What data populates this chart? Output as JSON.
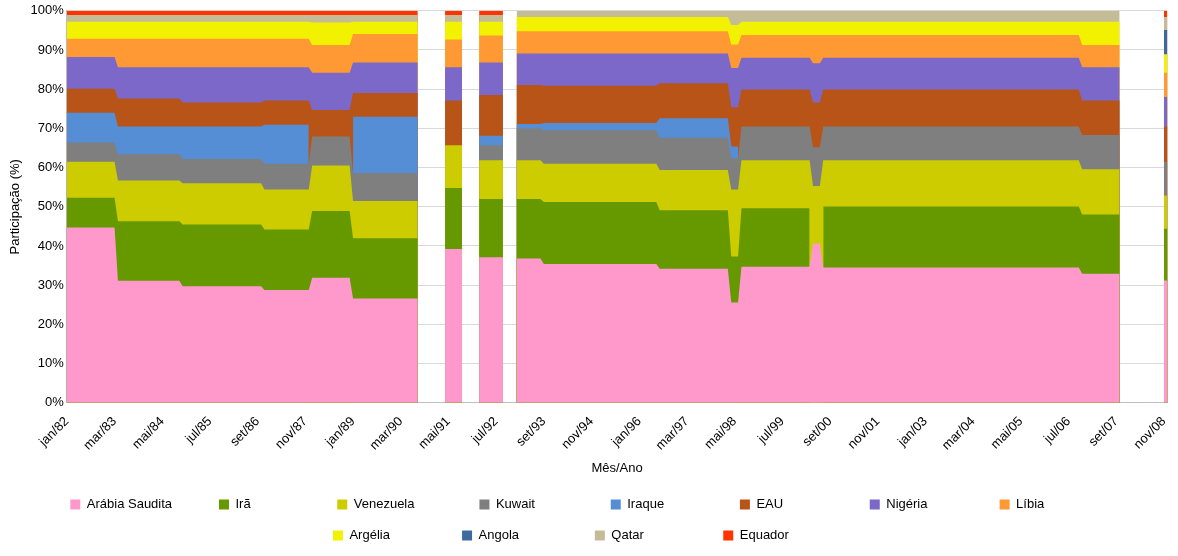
{
  "chart_data": {
    "type": "area",
    "stacked": true,
    "xlabel": "Mês/Ano",
    "ylabel": "Participação (%)",
    "x": [
      "1982-01",
      "1983-03",
      "1983-04",
      "1984-10",
      "1984-11",
      "1986-10",
      "1986-11",
      "1987-12",
      "1988-01",
      "1988-12",
      "1989-01",
      "1990-08",
      "1990-12",
      "1991-04",
      "1991-09",
      "1991-12",
      "1992-02",
      "1992-09",
      "1992-11",
      "1993-01",
      "1993-08",
      "1993-09",
      "1996-06",
      "1996-07",
      "1998-03",
      "1998-04",
      "1998-06",
      "1998-07",
      "2000-03",
      "2000-04",
      "2000-06",
      "2000-07",
      "2006-10",
      "2006-11",
      "2007-10",
      "2008-05",
      "2008-11",
      "2008-12"
    ],
    "xlim": [
      "1982-01",
      "2008-12"
    ],
    "xticks": [
      {
        "value": "1982-01",
        "label": "jan/82"
      },
      {
        "value": "1983-03",
        "label": "mar/83"
      },
      {
        "value": "1984-05",
        "label": "mai/84"
      },
      {
        "value": "1985-07",
        "label": "jul/85"
      },
      {
        "value": "1986-09",
        "label": "set/86"
      },
      {
        "value": "1987-11",
        "label": "nov/87"
      },
      {
        "value": "1989-01",
        "label": "jan/89"
      },
      {
        "value": "1990-03",
        "label": "mar/90"
      },
      {
        "value": "1991-05",
        "label": "mai/91"
      },
      {
        "value": "1992-07",
        "label": "jul/92"
      },
      {
        "value": "1993-09",
        "label": "set/93"
      },
      {
        "value": "1994-11",
        "label": "nov/94"
      },
      {
        "value": "1996-01",
        "label": "jan/96"
      },
      {
        "value": "1997-03",
        "label": "mar/97"
      },
      {
        "value": "1998-05",
        "label": "mai/98"
      },
      {
        "value": "1999-07",
        "label": "jul/99"
      },
      {
        "value": "2000-09",
        "label": "set/00"
      },
      {
        "value": "2001-11",
        "label": "nov/01"
      },
      {
        "value": "2003-01",
        "label": "jan/03"
      },
      {
        "value": "2004-03",
        "label": "mar/04"
      },
      {
        "value": "2005-05",
        "label": "mai/05"
      },
      {
        "value": "2006-07",
        "label": "jul/06"
      },
      {
        "value": "2007-09",
        "label": "set/07"
      },
      {
        "value": "2008-11",
        "label": "nov/08"
      }
    ],
    "ylim": [
      0,
      100
    ],
    "yticks": [
      {
        "value": 0,
        "label": "0%"
      },
      {
        "value": 10,
        "label": "10%"
      },
      {
        "value": 20,
        "label": "20%"
      },
      {
        "value": 30,
        "label": "30%"
      },
      {
        "value": 40,
        "label": "40%"
      },
      {
        "value": 50,
        "label": "50%"
      },
      {
        "value": 60,
        "label": "60%"
      },
      {
        "value": 70,
        "label": "70%"
      },
      {
        "value": 80,
        "label": "80%"
      },
      {
        "value": 90,
        "label": "90%"
      },
      {
        "value": 100,
        "label": "100%"
      }
    ],
    "grid": "y",
    "legend": "bottom",
    "series": [
      {
        "name": "Arábia Saudita",
        "color": "#ff99cc",
        "values": [
          44.7,
          44.7,
          31.1,
          31.1,
          29.7,
          29.7,
          28.8,
          28.8,
          31.9,
          31.9,
          26.6,
          26.6,
          null,
          39.2,
          39.2,
          null,
          37.1,
          37.1,
          null,
          36.8,
          36.8,
          35.4,
          35.4,
          34.2,
          34.2,
          25.6,
          25.6,
          34.7,
          34.7,
          40.6,
          40.6,
          34.5,
          34.5,
          32.9,
          32.9,
          null,
          31.2,
          31.2
        ]
      },
      {
        "name": "Irã",
        "color": "#669900",
        "values": [
          7.6,
          7.6,
          15.2,
          15.2,
          15.8,
          15.8,
          15.4,
          15.4,
          17.0,
          17.0,
          15.4,
          15.4,
          null,
          15.6,
          15.6,
          null,
          14.9,
          14.9,
          null,
          15.2,
          15.2,
          15.8,
          15.8,
          14.9,
          14.9,
          11.7,
          11.7,
          14.9,
          14.9,
          null,
          null,
          15.6,
          15.6,
          15.1,
          15.1,
          null,
          13.2,
          13.2
        ]
      },
      {
        "name": "Venezuela",
        "color": "#cccc00",
        "values": [
          9.2,
          9.2,
          10.4,
          10.4,
          10.5,
          10.5,
          10.2,
          10.2,
          11.6,
          11.6,
          9.5,
          9.5,
          null,
          10.9,
          10.9,
          null,
          9.9,
          9.9,
          null,
          9.9,
          9.9,
          9.8,
          9.8,
          10.3,
          10.3,
          17.1,
          17.1,
          12.3,
          12.3,
          14.7,
          14.7,
          11.8,
          11.8,
          11.6,
          11.6,
          null,
          8.5,
          8.5
        ]
      },
      {
        "name": "Kuwait",
        "color": "#7f7f7f",
        "values": [
          4.9,
          4.9,
          6.7,
          6.7,
          6.2,
          6.2,
          6.6,
          6.6,
          7.4,
          7.4,
          7.1,
          7.1,
          null,
          null,
          null,
          null,
          3.8,
          3.8,
          null,
          8.1,
          8.1,
          8.5,
          8.5,
          8.2,
          8.2,
          8.0,
          8.0,
          8.6,
          8.6,
          9.9,
          9.9,
          8.6,
          8.6,
          8.7,
          8.7,
          null,
          8.5,
          8.5
        ]
      },
      {
        "name": "Iraque",
        "color": "#558ed5",
        "values": [
          7.6,
          7.6,
          7.1,
          7.1,
          8.3,
          8.3,
          9.9,
          9.9,
          null,
          null,
          14.4,
          14.4,
          null,
          null,
          null,
          null,
          2.4,
          2.4,
          null,
          1.1,
          1.1,
          1.9,
          1.9,
          5.0,
          5.0,
          3.0,
          3.0,
          null,
          null,
          null,
          null,
          null,
          null,
          null,
          null,
          null,
          null,
          null
        ]
      },
      {
        "name": "EAU",
        "color": "#b85418",
        "values": [
          6.1,
          6.1,
          7.1,
          7.1,
          6.1,
          6.1,
          6.2,
          6.2,
          6.8,
          6.8,
          6.0,
          6.0,
          null,
          11.4,
          11.4,
          null,
          10.4,
          10.4,
          null,
          10.0,
          10.0,
          9.5,
          9.5,
          8.9,
          8.9,
          10.0,
          10.0,
          9.4,
          9.4,
          11.4,
          11.4,
          9.4,
          9.4,
          8.8,
          8.8,
          null,
          9.1,
          9.1
        ]
      },
      {
        "name": "Nigéria",
        "color": "#7b68c8",
        "values": [
          8.1,
          8.1,
          8.0,
          8.0,
          9.0,
          9.0,
          8.5,
          8.5,
          9.5,
          9.5,
          7.8,
          7.8,
          null,
          8.5,
          8.5,
          null,
          8.3,
          8.3,
          null,
          8.0,
          8.0,
          8.2,
          8.2,
          7.6,
          7.6,
          10.0,
          10.0,
          8.1,
          8.1,
          10.0,
          10.0,
          8.1,
          8.1,
          8.5,
          8.5,
          null,
          7.5,
          7.5
        ]
      },
      {
        "name": "Líbia",
        "color": "#ff9933",
        "values": [
          4.7,
          4.7,
          7.3,
          7.3,
          7.3,
          7.3,
          7.3,
          7.3,
          7.1,
          7.1,
          7.3,
          7.3,
          null,
          7.1,
          7.1,
          null,
          6.9,
          6.9,
          null,
          5.7,
          5.7,
          5.7,
          5.7,
          5.7,
          5.7,
          6.0,
          6.0,
          5.8,
          5.8,
          7.2,
          7.2,
          5.8,
          5.8,
          5.7,
          5.7,
          null,
          6.2,
          6.2
        ]
      },
      {
        "name": "Argélia",
        "color": "#f2f200",
        "values": [
          4.3,
          4.3,
          4.3,
          4.3,
          4.3,
          4.3,
          4.3,
          4.3,
          5.7,
          5.7,
          3.1,
          3.1,
          null,
          4.5,
          4.5,
          null,
          3.5,
          3.5,
          null,
          3.6,
          3.6,
          3.6,
          3.6,
          3.6,
          3.6,
          5.0,
          5.0,
          3.4,
          3.4,
          3.4,
          3.4,
          3.4,
          3.4,
          5.9,
          5.9,
          null,
          4.7,
          4.7
        ]
      },
      {
        "name": "Angola",
        "color": "#3d6a9e",
        "values": [
          null,
          null,
          null,
          null,
          null,
          null,
          null,
          null,
          null,
          null,
          null,
          null,
          null,
          null,
          null,
          null,
          null,
          null,
          null,
          null,
          null,
          null,
          null,
          null,
          null,
          null,
          null,
          null,
          null,
          null,
          null,
          null,
          null,
          null,
          null,
          null,
          6.2,
          6.2
        ]
      },
      {
        "name": "Qatar",
        "color": "#c4bc96",
        "values": [
          1.7,
          1.7,
          1.7,
          1.7,
          1.7,
          1.7,
          1.7,
          1.7,
          1.9,
          1.9,
          1.7,
          1.7,
          null,
          1.7,
          1.7,
          null,
          1.7,
          1.7,
          null,
          1.6,
          1.6,
          1.6,
          1.6,
          1.6,
          1.6,
          3.6,
          3.6,
          2.8,
          2.8,
          2.8,
          2.8,
          2.8,
          2.8,
          2.8,
          2.8,
          null,
          3.3,
          3.3
        ]
      },
      {
        "name": "Equador",
        "color": "#ff3300",
        "values": [
          1.1,
          1.1,
          1.1,
          1.1,
          1.1,
          1.1,
          1.1,
          1.1,
          1.1,
          1.1,
          1.1,
          1.1,
          null,
          1.1,
          1.1,
          null,
          1.1,
          1.1,
          null,
          null,
          null,
          null,
          null,
          null,
          null,
          null,
          null,
          null,
          null,
          null,
          null,
          null,
          null,
          null,
          null,
          null,
          1.6,
          1.6
        ]
      }
    ]
  }
}
